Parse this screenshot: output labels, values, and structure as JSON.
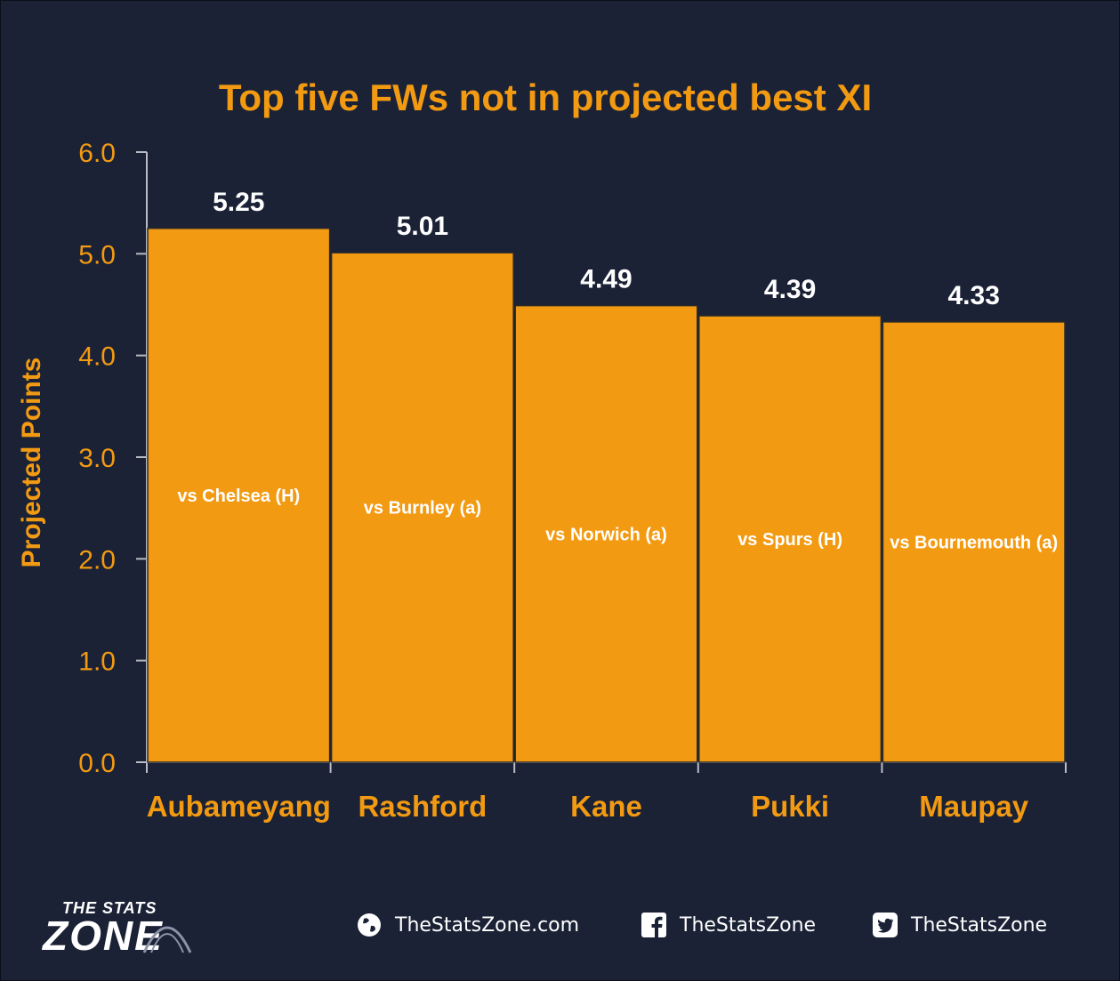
{
  "chart_data": {
    "type": "bar",
    "title": "Top five FWs not in projected best XI",
    "ylabel": "Projected Points",
    "xlabel": "",
    "ylim": [
      0,
      6
    ],
    "yticks": [
      "0.0",
      "1.0",
      "2.0",
      "3.0",
      "4.0",
      "5.0",
      "6.0"
    ],
    "categories": [
      "Aubameyang",
      "Rashford",
      "Kane",
      "Pukki",
      "Maupay"
    ],
    "values": [
      5.25,
      5.01,
      4.49,
      4.39,
      4.33
    ],
    "data_labels": [
      "5.25",
      "5.01",
      "4.49",
      "4.39",
      "4.33"
    ],
    "annotations": [
      "vs Chelsea (H)",
      "vs Burnley (a)",
      "vs Norwich (a)",
      "vs Spurs (H)",
      "vs Bournemouth (a)"
    ],
    "grid": false,
    "legend": "none",
    "colors": {
      "bar": "#f29a12",
      "bar_edge": "#2a2a2a",
      "background": "#1b2236",
      "text_accent": "#f29a12",
      "data_label": "#ffffff"
    }
  },
  "footer": {
    "logo_line1": "THE STATS",
    "logo_line2": "ZONE",
    "links": [
      {
        "icon": "globe-icon",
        "text": "TheStatsZone.com"
      },
      {
        "icon": "facebook-icon",
        "text": "TheStatsZone"
      },
      {
        "icon": "twitter-icon",
        "text": "TheStatsZone"
      }
    ]
  }
}
